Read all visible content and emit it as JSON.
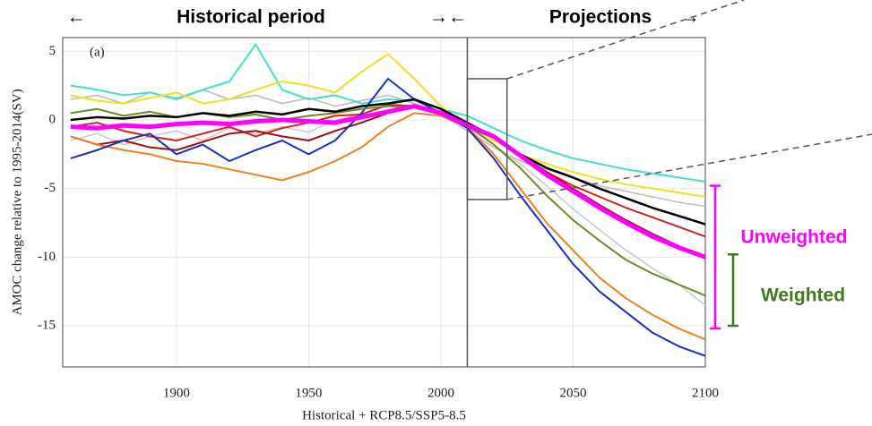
{
  "chart_data": {
    "type": "line",
    "header": [
      "←",
      "Historical period",
      "→←",
      "Projections",
      "→"
    ],
    "panel_label": "(a)",
    "x_label": "Historical + RCP8.5/SSP5-8.5",
    "y_label": "AMOC change relative to 1995-2014(SV)",
    "xlim": [
      1857,
      2100
    ],
    "ylim": [
      -18,
      6
    ],
    "xticks": [
      1900,
      1950,
      2000,
      2050,
      2100
    ],
    "yticks": [
      5,
      0,
      -5,
      -10,
      -15
    ],
    "grid": true,
    "vline": 2010,
    "highlight_box": {
      "xlim": [
        2010,
        2025
      ],
      "ylim": [
        -5.8,
        3
      ]
    },
    "x": [
      1860,
      1870,
      1880,
      1890,
      1900,
      1910,
      1920,
      1930,
      1940,
      1950,
      1960,
      1970,
      1980,
      1990,
      2000,
      2010,
      2020,
      2030,
      2040,
      2050,
      2060,
      2070,
      2080,
      2090,
      2100
    ],
    "series": [
      {
        "name": "gray-1",
        "color": "#bbbbbb",
        "width": 1.5,
        "values": [
          1.5,
          1.8,
          1.2,
          2,
          1.6,
          2.2,
          1.5,
          1.8,
          1.2,
          1.6,
          1.0,
          1.4,
          1.8,
          1.2,
          0.4,
          -0.8,
          -2,
          -3,
          -3.6,
          -4.2,
          -4.8,
          -5.2,
          -5.6,
          -6,
          -6.3
        ]
      },
      {
        "name": "gray-2",
        "color": "#c8c8c8",
        "width": 1.5,
        "values": [
          -1.5,
          -1,
          -1.8,
          -1.2,
          -0.8,
          -1.5,
          -0.6,
          -1,
          -0.5,
          -0.9,
          0,
          0.4,
          1.2,
          1.0,
          0.6,
          -0.5,
          -1.8,
          -3.2,
          -4.8,
          -6.5,
          -8,
          -9.5,
          -10.8,
          -12,
          -13.5
        ]
      },
      {
        "name": "cyan",
        "color": "#40e0d0",
        "width": 2,
        "values": [
          2.5,
          2.2,
          1.8,
          2,
          1.5,
          2.2,
          2.8,
          5.5,
          2.2,
          1.5,
          1.8,
          1.2,
          1.5,
          1.4,
          0.8,
          0.3,
          -0.6,
          -1.5,
          -2.2,
          -2.8,
          -3.2,
          -3.6,
          -3.9,
          -4.2,
          -4.5
        ]
      },
      {
        "name": "yellow",
        "color": "#f0e020",
        "width": 2,
        "values": [
          1.8,
          1.4,
          1.2,
          1.6,
          2.0,
          1.2,
          1.5,
          2.2,
          2.8,
          2.5,
          2.0,
          3.5,
          4.8,
          3.0,
          1.0,
          -0.5,
          -1.5,
          -2.5,
          -3.2,
          -3.8,
          -4.3,
          -4.7,
          -5,
          -5.3,
          -5.6
        ]
      },
      {
        "name": "red",
        "color": "#d62020",
        "width": 2,
        "values": [
          -0.5,
          -0.2,
          -0.8,
          -1.2,
          -1.5,
          -1.0,
          -0.5,
          -1.2,
          -0.6,
          -0.2,
          0.3,
          0.4,
          1.1,
          1.0,
          0.4,
          -0.3,
          -1.3,
          -2.6,
          -3.8,
          -4.8,
          -5.6,
          -6.4,
          -7.1,
          -7.8,
          -8.5
        ]
      },
      {
        "name": "dark-red",
        "color": "#a01010",
        "width": 2,
        "values": [
          -1.2,
          -1.8,
          -1.5,
          -2.0,
          -2.2,
          -1.6,
          -1.0,
          -0.8,
          -1.2,
          -1.5,
          -0.8,
          -0.2,
          0.5,
          0.9,
          0.6,
          -0.2,
          -1.2,
          -2.5,
          -3.8,
          -5,
          -6.2,
          -7.3,
          -8.3,
          -9.2,
          -10
        ]
      },
      {
        "name": "orange",
        "color": "#f08020",
        "width": 2,
        "values": [
          -1.2,
          -1.8,
          -2.2,
          -2.5,
          -3.0,
          -3.2,
          -3.6,
          -4.0,
          -4.4,
          -3.8,
          -3.0,
          -2.0,
          -0.5,
          0.5,
          0.3,
          -0.5,
          -2.5,
          -5,
          -7.5,
          -9.5,
          -11.5,
          -13,
          -14.2,
          -15.2,
          -16
        ]
      },
      {
        "name": "blue",
        "color": "#1a30c0",
        "width": 2,
        "values": [
          -2.8,
          -2.2,
          -1.5,
          -1.0,
          -2.5,
          -1.8,
          -3.0,
          -2.2,
          -1.5,
          -2.5,
          -1.5,
          0.5,
          3.0,
          1.5,
          0.5,
          -0.6,
          -2.8,
          -5.5,
          -8,
          -10.5,
          -12.5,
          -14,
          -15.5,
          -16.5,
          -17.2
        ]
      },
      {
        "name": "olive",
        "color": "#6b8e23",
        "width": 2,
        "values": [
          0.5,
          0.8,
          0.3,
          0.6,
          0.2,
          0.5,
          0.2,
          0.4,
          0.0,
          0.3,
          0.5,
          0.8,
          1.0,
          0.9,
          0.4,
          -0.4,
          -1.8,
          -3.5,
          -5.5,
          -7.3,
          -8.8,
          -10.2,
          -11.2,
          -12,
          -12.8
        ]
      },
      {
        "name": "black",
        "color": "#000000",
        "width": 2.5,
        "values": [
          0,
          0.2,
          0.1,
          0.3,
          0.2,
          0.5,
          0.3,
          0.6,
          0.4,
          0.8,
          0.6,
          1.0,
          1.2,
          1.5,
          0.8,
          -0.2,
          -1.3,
          -2.5,
          -3.5,
          -4.2,
          -5,
          -5.7,
          -6.4,
          -7,
          -7.6
        ]
      },
      {
        "name": "mean",
        "color": "#ff00ff",
        "width": 5,
        "values": [
          -0.5,
          -0.6,
          -0.4,
          -0.5,
          -0.3,
          -0.2,
          -0.3,
          -0.1,
          0,
          -0.1,
          -0.2,
          0.2,
          0.6,
          1.0,
          0.5,
          -0.4,
          -1.2,
          -2.6,
          -4,
          -5.2,
          -6.4,
          -7.5,
          -8.5,
          -9.3,
          -10
        ]
      }
    ],
    "annotations": [
      {
        "text": "Unweighted",
        "color": "#ff00ff",
        "range": [
          -4.8,
          -15.2
        ]
      },
      {
        "text": "Weighted",
        "color": "#3d7a1e",
        "range": [
          -9.8,
          -15
        ]
      }
    ]
  }
}
